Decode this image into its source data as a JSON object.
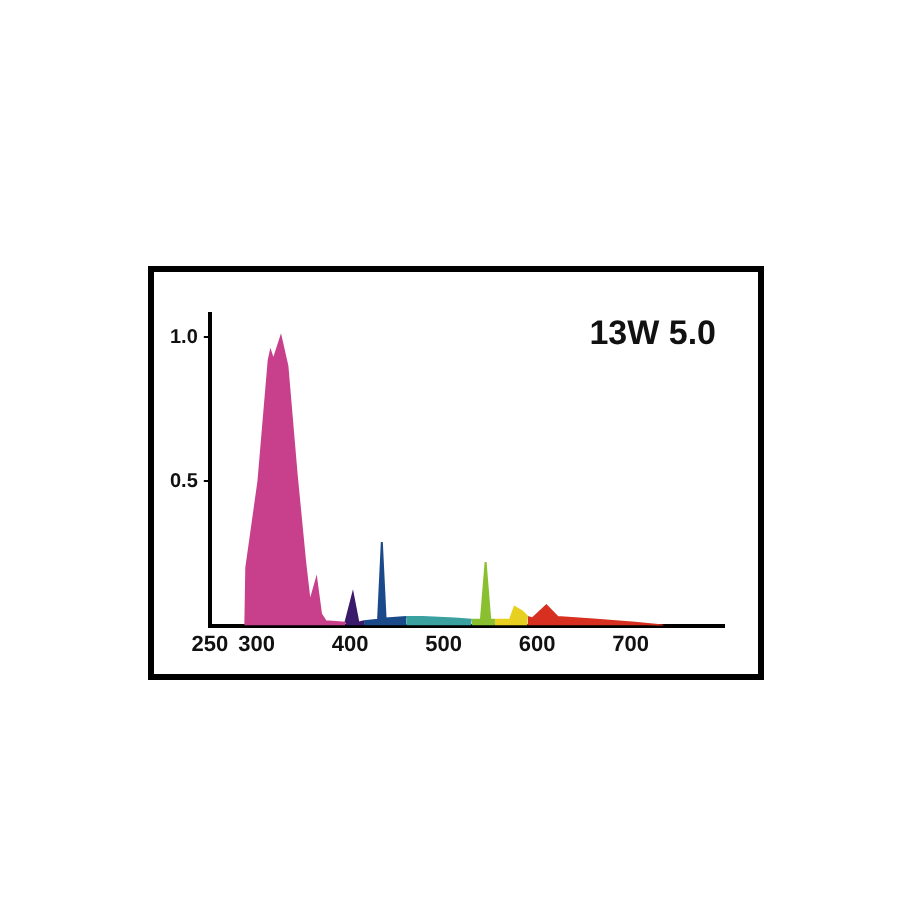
{
  "chart_data": {
    "type": "area",
    "title": "13W 5.0",
    "xlim": [
      250,
      800
    ],
    "xticks": [
      250,
      300,
      400,
      500,
      600,
      700
    ],
    "ylim": [
      0,
      1.08
    ],
    "yticks": [
      0.5,
      {
        "value": 1,
        "label": "1.0"
      }
    ],
    "grid": false,
    "legend": false,
    "marker": "none",
    "series": [
      {
        "color": "#c8408c",
        "x": [
          288,
          289,
          302,
          313,
          315,
          318,
          326,
          333,
          343,
          352,
          357,
          364,
          369,
          374,
          395
        ],
        "values": [
          0,
          0.2,
          0.5,
          0.92,
          0.95,
          0.92,
          1.0,
          0.9,
          0.52,
          0.22,
          0.08,
          0.16,
          0.04,
          0.015,
          0.01
        ]
      },
      {
        "color": "#3a1a6a",
        "x": [
          395,
          403,
          409,
          415
        ],
        "values": [
          0.01,
          0.11,
          0.01,
          0.015
        ]
      },
      {
        "color": "#1a4a8a",
        "x": [
          415,
          430,
          434,
          438,
          460
        ],
        "values": [
          0.015,
          0.02,
          0.29,
          0.025,
          0.03
        ]
      },
      {
        "color": "#3aa0a0",
        "x": [
          460,
          478,
          512,
          530
        ],
        "values": [
          0.03,
          0.03,
          0.025,
          0.02
        ]
      },
      {
        "color": "#8ac030",
        "x": [
          530,
          540,
          545,
          550,
          555
        ],
        "values": [
          0.02,
          0.02,
          0.22,
          0.02,
          0.02
        ]
      },
      {
        "color": "#e8d020",
        "x": [
          555,
          571,
          576,
          584,
          590
        ],
        "values": [
          0.02,
          0.02,
          0.065,
          0.05,
          0.03
        ]
      },
      {
        "color": "#d83020",
        "x": [
          590,
          595,
          610,
          622,
          664,
          705,
          735
        ],
        "values": [
          0.03,
          0.025,
          0.07,
          0.03,
          0.02,
          0.01,
          0
        ]
      }
    ]
  }
}
